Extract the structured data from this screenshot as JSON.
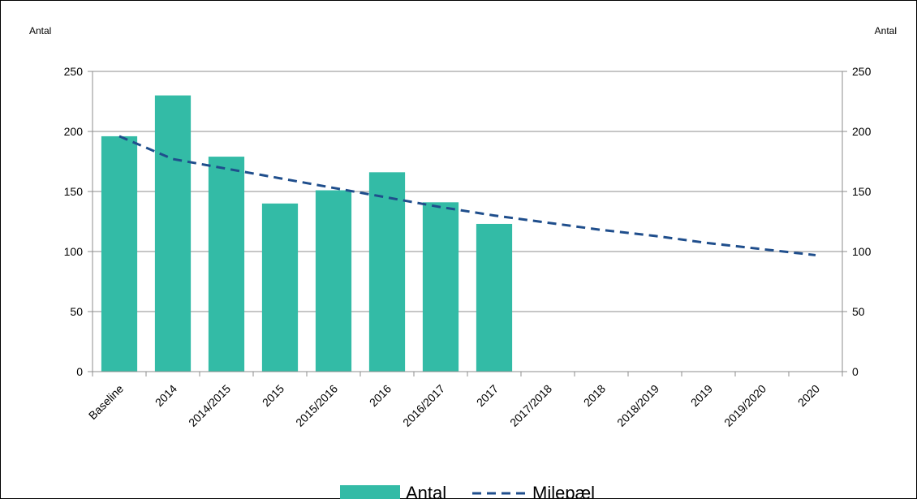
{
  "chart_data": {
    "type": "bar",
    "categories": [
      "Baseline",
      "2014",
      "2014/2015",
      "2015",
      "2015/2016",
      "2016",
      "2016/2017",
      "2017",
      "2017/2018",
      "2018",
      "2018/2019",
      "2019",
      "2019/2020",
      "2020"
    ],
    "series": [
      {
        "name": "Antal",
        "kind": "bar",
        "color": "#33bba6",
        "values": [
          196,
          230,
          179,
          140,
          151,
          166,
          141,
          123,
          null,
          null,
          null,
          null,
          null,
          null
        ]
      },
      {
        "name": "Milepæl",
        "kind": "line-dashed",
        "color": "#1f4e8c",
        "values": [
          196,
          177,
          169,
          161,
          153,
          145,
          137,
          130,
          124,
          118,
          113,
          107,
          102,
          97
        ]
      }
    ],
    "ylabel_left": "Antal",
    "ylabel_right": "Antal",
    "ylim": [
      0,
      250
    ],
    "yticks": [
      0,
      50,
      100,
      150,
      200,
      250
    ],
    "grid": true,
    "legend_position": "bottom-center"
  }
}
